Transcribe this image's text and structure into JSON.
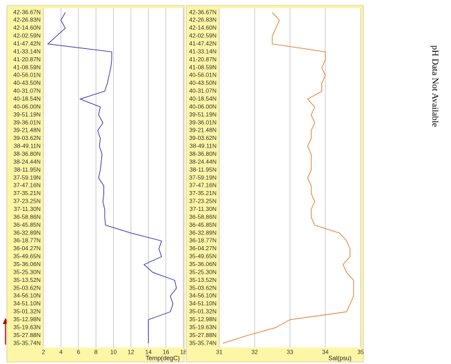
{
  "chart_data": [
    {
      "type": "line",
      "x_label": "Temp(degC)",
      "categories": [
        "42-36.67N",
        "42-26.83N",
        "42-14.60N",
        "42-02.59N",
        "41-47.42N",
        "41-33.14N",
        "41-20.87N",
        "41-08.59N",
        "40-56.01N",
        "40-43.50N",
        "40-31.07N",
        "40-18.54N",
        "40-06.00N",
        "39-51.19N",
        "39-36.01N",
        "39-21.48N",
        "39-03.62N",
        "38-49.11N",
        "38-36.80N",
        "38-24.44N",
        "38-11.95N",
        "37-59.19N",
        "37-47.16N",
        "37-35.21N",
        "37-23.25N",
        "37-11.30N",
        "36-58.86N",
        "36-45.85N",
        "36-32.89N",
        "36-18.77N",
        "36-04.27N",
        "35-49.65N",
        "35-36.06N",
        "35-25.30N",
        "35-13.52N",
        "35-03.62N",
        "34-56.10N",
        "34-51.10N",
        "35-01.32N",
        "35-12.98N",
        "35-19.63N",
        "35-27.88N",
        "35-35.74N"
      ],
      "values": [
        4.5,
        4.0,
        4.5,
        3.5,
        2.5,
        9.8,
        9.8,
        9.7,
        9.5,
        9.3,
        9.0,
        6.2,
        8.5,
        8.3,
        8.8,
        8.2,
        8.5,
        8.4,
        8.7,
        8.6,
        8.5,
        8.3,
        8.9,
        8.9,
        8.8,
        9.0,
        9.0,
        9.1,
        12,
        15.5,
        15.2,
        15.5,
        13.5,
        14.5,
        17,
        17.2,
        16.5,
        16.8,
        16.5,
        14,
        14,
        14,
        14
      ],
      "color": "#3a30b4",
      "xlim": [
        2,
        18
      ],
      "xticks": [
        2,
        4,
        6,
        8,
        10,
        12,
        14,
        16,
        18
      ],
      "grid": true
    },
    {
      "type": "line",
      "x_label": "Sal(psu)",
      "categories": [
        "42-36.67N",
        "42-26.83N",
        "42-14.60N",
        "42-02.59N",
        "41-47.42N",
        "41-33.14N",
        "41-20.87N",
        "41-08.59N",
        "40-56.01N",
        "40-43.50N",
        "40-31.07N",
        "40-18.54N",
        "40-06.00N",
        "39-51.19N",
        "39-36.01N",
        "39-21.48N",
        "39-03.62N",
        "38-49.11N",
        "38-36.80N",
        "38-24.44N",
        "38-11.95N",
        "37-59.19N",
        "37-47.16N",
        "37-35.21N",
        "37-23.25N",
        "37-11.30N",
        "36-58.86N",
        "36-45.85N",
        "36-32.89N",
        "36-18.77N",
        "36-04.27N",
        "35-49.65N",
        "35-36.06N",
        "35-25.30N",
        "35-13.52N",
        "35-03.62N",
        "34-56.10N",
        "34-51.10N",
        "35-01.32N",
        "35-12.98N",
        "35-19.63N",
        "35-27.88N",
        "35-35.74N"
      ],
      "values": [
        32.5,
        32.7,
        32.6,
        32.5,
        32.5,
        34.0,
        34.0,
        33.9,
        34.0,
        33.9,
        33.9,
        33.5,
        33.7,
        33.6,
        33.7,
        33.6,
        33.6,
        33.5,
        33.6,
        33.6,
        33.6,
        33.5,
        33.6,
        33.6,
        33.7,
        33.6,
        33.6,
        33.7,
        34.4,
        34.6,
        34.7,
        34.7,
        34.5,
        34.6,
        34.8,
        34.8,
        34.8,
        34.7,
        34.6,
        33.0,
        32.6,
        31.8,
        31.1
      ],
      "color": "#e07b2a",
      "xlim": [
        31,
        35
      ],
      "xticks": [
        31,
        32,
        33,
        34,
        35
      ],
      "grid": true
    }
  ],
  "note": "pH Data Not Available"
}
